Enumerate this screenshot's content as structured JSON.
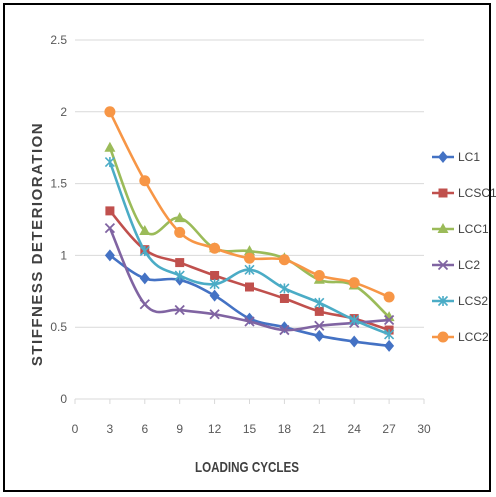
{
  "chart_data": {
    "type": "line",
    "title": "",
    "xlabel": "LOADING CYCLES",
    "ylabel": "STIFFNESS DETERIORATION",
    "xlim": [
      0,
      30
    ],
    "ylim": [
      0,
      2.5
    ],
    "xticks": [
      "0",
      "3",
      "6",
      "9",
      "12",
      "15",
      "18",
      "21",
      "24",
      "27",
      "30"
    ],
    "yticks": [
      "0",
      "0.5",
      "1",
      "1.5",
      "2",
      "2.5"
    ],
    "grid": "horizontal",
    "legend_position": "right",
    "x": [
      3,
      6,
      9,
      12,
      15,
      18,
      21,
      24,
      27
    ],
    "series": [
      {
        "name": "LC1",
        "color": "#4472C4",
        "marker": "diamond",
        "values": [
          1.0,
          0.84,
          0.83,
          0.72,
          0.56,
          0.5,
          0.44,
          0.4,
          0.37
        ]
      },
      {
        "name": "LCSC1",
        "color": "#C0504D",
        "marker": "square",
        "values": [
          1.31,
          1.04,
          0.95,
          0.86,
          0.78,
          0.7,
          0.61,
          0.56,
          0.48
        ]
      },
      {
        "name": "LCC1",
        "color": "#9BBB59",
        "marker": "triangle",
        "values": [
          1.75,
          1.17,
          1.26,
          1.05,
          1.03,
          0.98,
          0.83,
          0.79,
          0.57
        ]
      },
      {
        "name": "LC2",
        "color": "#8064A2",
        "marker": "x",
        "values": [
          1.19,
          0.66,
          0.62,
          0.59,
          0.54,
          0.48,
          0.51,
          0.53,
          0.55
        ]
      },
      {
        "name": "LCS2",
        "color": "#4BACC6",
        "marker": "star",
        "values": [
          1.65,
          1.03,
          0.86,
          0.8,
          0.9,
          0.77,
          0.67,
          0.55,
          0.45
        ]
      },
      {
        "name": "LCC2",
        "color": "#F79646",
        "marker": "circle",
        "values": [
          2.0,
          1.52,
          1.16,
          1.05,
          0.98,
          0.97,
          0.86,
          0.81,
          0.71
        ]
      }
    ]
  }
}
